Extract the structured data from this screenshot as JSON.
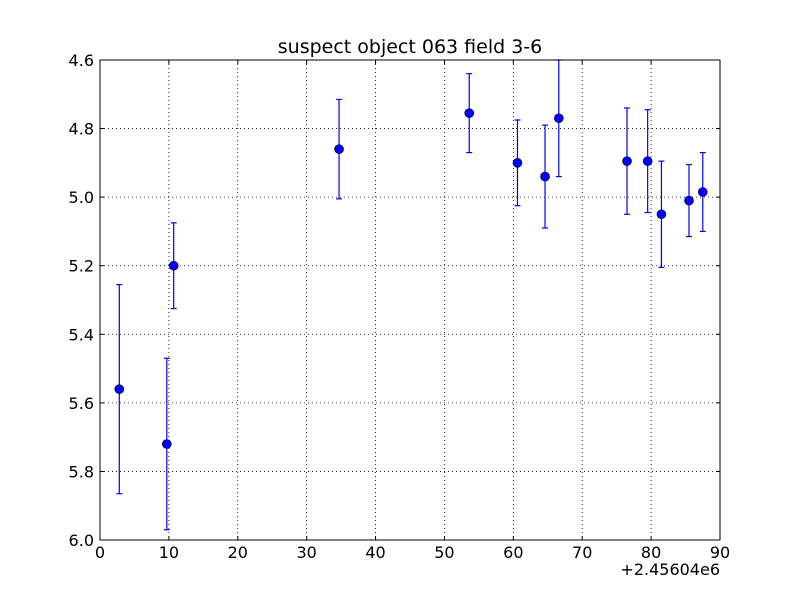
{
  "chart_data": {
    "type": "scatter",
    "title": "suspect object 063 field 3-6",
    "xlabel": "",
    "ylabel": "",
    "x_offset_label": "+2.45604e6",
    "xlim": [
      0,
      90
    ],
    "ylim": [
      6.0,
      4.6
    ],
    "y_inverted": true,
    "grid": true,
    "x_ticks": [
      "0",
      "10",
      "20",
      "30",
      "40",
      "50",
      "60",
      "70",
      "80",
      "90"
    ],
    "y_ticks": [
      "4.6",
      "4.8",
      "5.0",
      "5.2",
      "5.4",
      "5.6",
      "5.8",
      "6.0"
    ],
    "marker_color": "#0000ff",
    "series": [
      {
        "x": [
          2.8,
          9.7,
          10.7,
          34.7,
          53.6,
          60.6,
          64.6,
          66.6,
          76.5,
          79.5,
          81.5,
          85.5,
          87.5
        ],
        "y": [
          5.56,
          5.72,
          5.2,
          4.86,
          4.755,
          4.9,
          4.94,
          4.77,
          4.895,
          4.895,
          5.05,
          5.01,
          4.985
        ],
        "err": [
          0.305,
          0.25,
          0.125,
          0.145,
          0.115,
          0.125,
          0.15,
          0.17,
          0.155,
          0.15,
          0.155,
          0.105,
          0.115
        ]
      }
    ]
  }
}
